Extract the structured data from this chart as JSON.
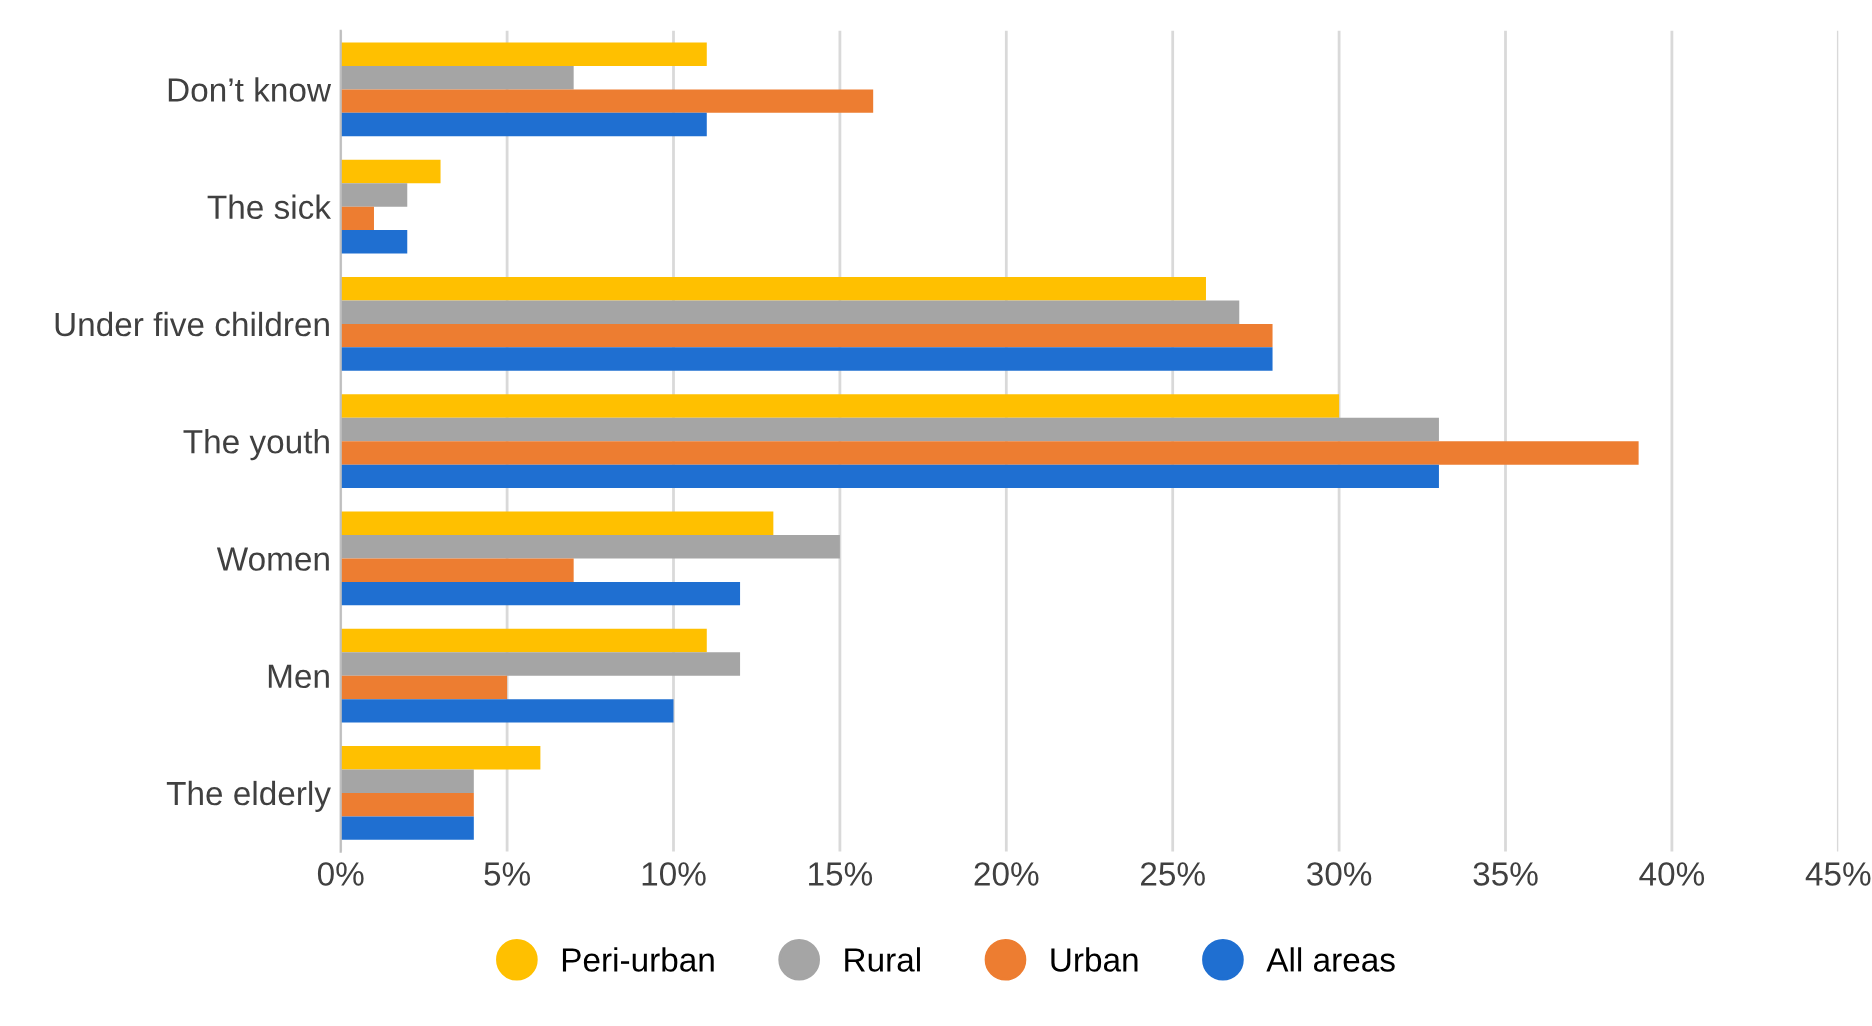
{
  "chart_data": {
    "type": "bar",
    "orientation": "horizontal",
    "categories": [
      "Don’t know",
      "The sick",
      "Under five children",
      "The youth",
      "Women",
      "Men",
      "The elderly"
    ],
    "series": [
      {
        "name": "Peri-urban",
        "color": "#ffc000",
        "values": [
          11,
          3,
          26,
          30,
          13,
          11,
          6
        ]
      },
      {
        "name": "Rural",
        "color": "#a5a5a5",
        "values": [
          7,
          2,
          27,
          33,
          15,
          12,
          4
        ]
      },
      {
        "name": "Urban",
        "color": "#ed7d31",
        "values": [
          16,
          1,
          28,
          39,
          7,
          5,
          4
        ]
      },
      {
        "name": "All areas",
        "color": "#1f6fd1",
        "values": [
          11,
          2,
          28,
          33,
          12,
          10,
          4
        ]
      }
    ],
    "xlim": [
      0,
      45
    ],
    "xticks": [
      {
        "value": 0,
        "label": "0%"
      },
      {
        "value": 5,
        "label": "5%"
      },
      {
        "value": 10,
        "label": "10%"
      },
      {
        "value": 15,
        "label": "15%"
      },
      {
        "value": 20,
        "label": "20%"
      },
      {
        "value": 25,
        "label": "25%"
      },
      {
        "value": 30,
        "label": "30%"
      },
      {
        "value": 35,
        "label": "35%"
      },
      {
        "value": 40,
        "label": "40%"
      },
      {
        "value": 45,
        "label": "45%"
      }
    ],
    "grid": "x",
    "legend": "bottom",
    "marker": "circle"
  }
}
